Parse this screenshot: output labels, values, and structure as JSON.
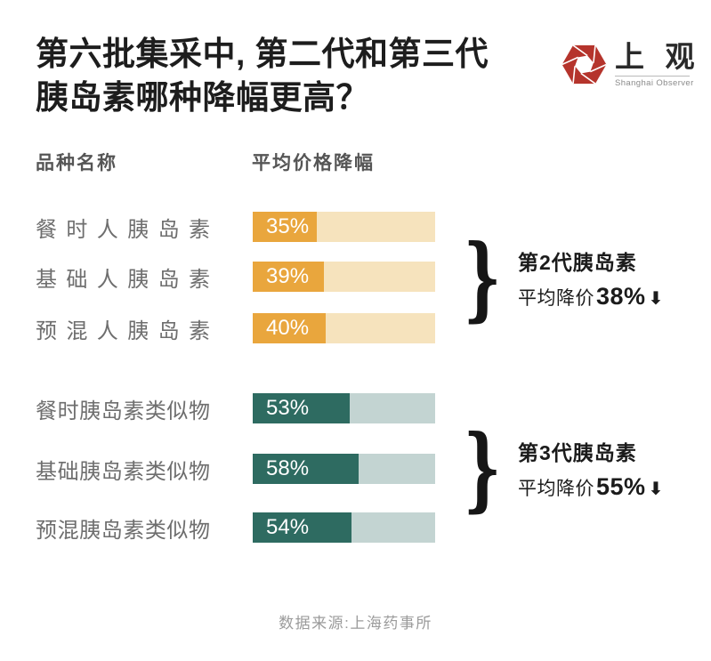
{
  "header": {
    "title_line1": "第六批集采中, 第二代和第三代",
    "title_line2": "胰岛素哪种降幅更高？",
    "logo": {
      "cn": "上 观",
      "en": "Shanghai Observer",
      "brand_red": "#b5342c"
    }
  },
  "columns": {
    "name": "品种名称",
    "value": "平均价格降幅"
  },
  "chart_data": {
    "type": "bar",
    "title": "第六批集采中, 第二代和第三代胰岛素哪种降幅更高？",
    "unit": "%",
    "xlim": [
      0,
      100
    ],
    "categories": [
      "餐时人胰岛素",
      "基础人胰岛素",
      "预混人胰岛素",
      "餐时胰岛素类似物",
      "基础胰岛素类似物",
      "预混胰岛素类似物"
    ],
    "values": [
      35,
      39,
      40,
      53,
      58,
      54
    ],
    "groups": [
      {
        "name": "第2代胰岛素",
        "avg_prefix": "平均降价",
        "avg_value": "38%",
        "arrow": "⬇",
        "bracket": "}",
        "bar_color": "#e9a63d",
        "track_color": "#f6e3bd",
        "rows": [
          {
            "label": "餐时人胰岛素",
            "value": 35,
            "value_label": "35%"
          },
          {
            "label": "基础人胰岛素",
            "value": 39,
            "value_label": "39%"
          },
          {
            "label": "预混人胰岛素",
            "value": 40,
            "value_label": "40%"
          }
        ]
      },
      {
        "name": "第3代胰岛素",
        "avg_prefix": "平均降价",
        "avg_value": "55%",
        "arrow": "⬇",
        "bracket": "}",
        "bar_color": "#2e6b61",
        "track_color": "#c3d4d2",
        "rows": [
          {
            "label": "餐时胰岛素类似物",
            "value": 53,
            "value_label": "53%"
          },
          {
            "label": "基础胰岛素类似物",
            "value": 58,
            "value_label": "58%"
          },
          {
            "label": "预混胰岛素类似物",
            "value": 54,
            "value_label": "54%"
          }
        ]
      }
    ]
  },
  "footer": {
    "source": "数据来源:上海药事所"
  }
}
